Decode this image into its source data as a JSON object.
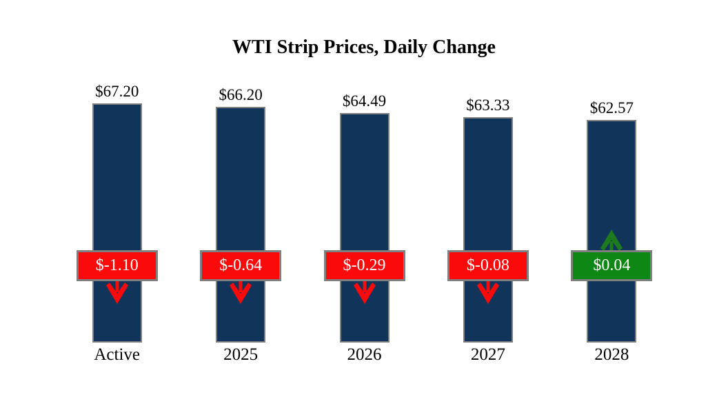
{
  "chart_data": {
    "type": "bar",
    "title": "WTI Strip Prices, Daily Change",
    "categories": [
      "Active",
      "2025",
      "2026",
      "2027",
      "2028"
    ],
    "series": [
      {
        "name": "Strip Price",
        "values": [
          67.2,
          66.2,
          64.49,
          63.33,
          62.57
        ]
      },
      {
        "name": "Daily Change",
        "values": [
          -1.1,
          -0.64,
          -0.29,
          -0.08,
          0.04
        ]
      }
    ],
    "ylim": [
      0,
      70
    ],
    "grid": false,
    "legend": false,
    "axes_shown": false,
    "bars": [
      {
        "category": "Active",
        "value": 67.2,
        "price_label": "$67.20",
        "change": -1.1,
        "change_label": "$-1.10",
        "direction": "down"
      },
      {
        "category": "2025",
        "value": 66.2,
        "price_label": "$66.20",
        "change": -0.64,
        "change_label": "$-0.64",
        "direction": "down"
      },
      {
        "category": "2026",
        "value": 64.49,
        "price_label": "$64.49",
        "change": -0.29,
        "change_label": "$-0.29",
        "direction": "down"
      },
      {
        "category": "2027",
        "value": 63.33,
        "price_label": "$63.33",
        "change": -0.08,
        "change_label": "$-0.08",
        "direction": "down"
      },
      {
        "category": "2028",
        "value": 62.57,
        "price_label": "$62.57",
        "change": 0.04,
        "change_label": "$0.04",
        "direction": "up"
      }
    ],
    "colors": {
      "bar_fill": "#11345A",
      "bar_border": "#7F7F7F",
      "decrease_badge": "#FA0A0A",
      "increase_badge": "#0E8714",
      "decrease_arrow": "#FA0A0A",
      "increase_arrow": "#1E7A1E",
      "badge_border": "#7F7F7F",
      "badge_text": "#FFFFFF",
      "title_text": "#000000",
      "background": "#FFFFFF"
    }
  }
}
